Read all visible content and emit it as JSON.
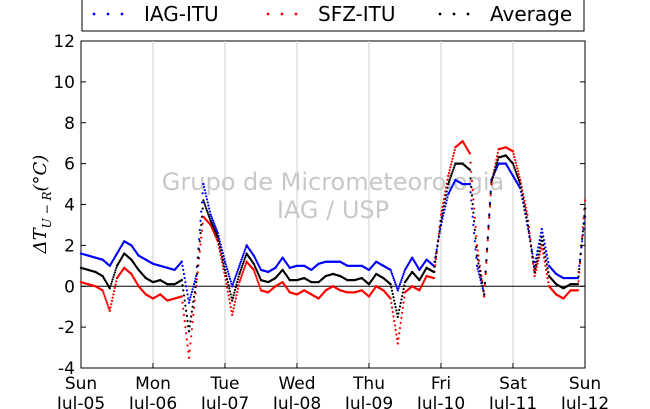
{
  "chart_data": {
    "type": "scatter",
    "title": "",
    "ylabel": "ΔT_{U-R}(°C)",
    "ylabel_parts": {
      "main": "ΔT",
      "sub": "U − R",
      "unit": "(°C)"
    },
    "xlabel": "",
    "ylim": [
      -4,
      12
    ],
    "yticks": [
      -4,
      -2,
      0,
      2,
      4,
      6,
      8,
      10,
      12
    ],
    "x_range_days": [
      0,
      7
    ],
    "xticks": [
      {
        "day": "Sun",
        "date": "Jul-05"
      },
      {
        "day": "Mon",
        "date": "Jul-06"
      },
      {
        "day": "Tue",
        "date": "Jul-07"
      },
      {
        "day": "Wed",
        "date": "Jul-08"
      },
      {
        "day": "Thu",
        "date": "Jul-09"
      },
      {
        "day": "Fri",
        "date": "Jul-10"
      },
      {
        "day": "Sat",
        "date": "Jul-11"
      },
      {
        "day": "Sun",
        "date": "Jul-12"
      }
    ],
    "grid": "vertical",
    "zero_line": true,
    "legend_position": "top",
    "watermark": [
      "Grupo de Micrometeorologia",
      "IAG / USP"
    ],
    "series": [
      {
        "name": "IAG-ITU",
        "color": "#0000ff",
        "x": [
          0,
          0.1,
          0.2,
          0.3,
          0.4,
          0.5,
          0.6,
          0.7,
          0.8,
          0.9,
          1.0,
          1.1,
          1.2,
          1.3,
          1.4,
          1.5,
          1.6,
          1.7,
          1.8,
          1.9,
          2.0,
          2.1,
          2.2,
          2.3,
          2.4,
          2.5,
          2.6,
          2.7,
          2.8,
          2.9,
          3.0,
          3.1,
          3.2,
          3.3,
          3.4,
          3.5,
          3.6,
          3.7,
          3.8,
          3.9,
          4.0,
          4.1,
          4.2,
          4.3,
          4.4,
          4.5,
          4.6,
          4.7,
          4.8,
          4.9,
          5.0,
          5.1,
          5.2,
          5.3,
          5.4,
          5.5,
          5.6,
          5.7,
          5.8,
          5.9,
          6.0,
          6.1,
          6.2,
          6.3,
          6.4,
          6.5,
          6.6,
          6.7,
          6.8,
          6.9,
          7.0
        ],
        "y": [
          1.6,
          1.5,
          1.4,
          1.3,
          1.0,
          1.6,
          2.2,
          2.0,
          1.5,
          1.3,
          1.1,
          1.0,
          0.9,
          0.8,
          1.2,
          -0.8,
          0.5,
          5.0,
          3.5,
          2.6,
          1.2,
          0.0,
          1.0,
          2.0,
          1.5,
          0.8,
          0.7,
          0.9,
          1.4,
          0.9,
          1.0,
          1.0,
          0.8,
          1.1,
          1.2,
          1.2,
          1.2,
          1.0,
          1.0,
          1.0,
          0.8,
          1.2,
          1.0,
          0.8,
          -0.2,
          0.8,
          1.4,
          0.8,
          1.3,
          1.0,
          3.0,
          4.5,
          5.2,
          5.0,
          5.0,
          1.0,
          -0.4,
          5.2,
          6.0,
          6.0,
          5.4,
          4.8,
          3.0,
          1.0,
          2.8,
          1.0,
          0.6,
          0.4,
          0.4,
          0.4,
          3.4
        ]
      },
      {
        "name": "SFZ-ITU",
        "color": "#ff0000",
        "x": [
          0,
          0.1,
          0.2,
          0.3,
          0.4,
          0.5,
          0.6,
          0.7,
          0.8,
          0.9,
          1.0,
          1.1,
          1.2,
          1.3,
          1.4,
          1.5,
          1.6,
          1.7,
          1.8,
          1.9,
          2.0,
          2.1,
          2.2,
          2.3,
          2.4,
          2.5,
          2.6,
          2.7,
          2.8,
          2.9,
          3.0,
          3.1,
          3.2,
          3.3,
          3.4,
          3.5,
          3.6,
          3.7,
          3.8,
          3.9,
          4.0,
          4.1,
          4.2,
          4.3,
          4.4,
          4.5,
          4.6,
          4.7,
          4.8,
          4.9,
          5.0,
          5.1,
          5.2,
          5.3,
          5.4,
          5.5,
          5.6,
          5.7,
          5.8,
          5.9,
          6.0,
          6.1,
          6.2,
          6.3,
          6.4,
          6.5,
          6.6,
          6.7,
          6.8,
          6.9,
          7.0
        ],
        "y": [
          0.2,
          0.1,
          0.0,
          -0.2,
          -1.2,
          0.4,
          0.9,
          0.6,
          0.0,
          -0.4,
          -0.6,
          -0.4,
          -0.7,
          -0.6,
          -0.5,
          -3.5,
          0.0,
          3.4,
          3.0,
          2.2,
          0.5,
          -1.4,
          0.2,
          1.2,
          0.8,
          -0.2,
          -0.3,
          0.0,
          0.2,
          -0.3,
          -0.4,
          -0.2,
          -0.4,
          -0.6,
          -0.2,
          0.0,
          -0.2,
          -0.3,
          -0.3,
          -0.2,
          -0.5,
          0.0,
          -0.2,
          -0.6,
          -2.8,
          -0.3,
          0.0,
          -0.2,
          0.5,
          0.4,
          3.5,
          5.4,
          6.8,
          7.1,
          6.5,
          2.0,
          -0.5,
          5.0,
          6.7,
          6.8,
          6.6,
          5.2,
          3.5,
          0.5,
          2.0,
          0.0,
          -0.4,
          -0.6,
          -0.2,
          -0.2,
          4.2
        ]
      },
      {
        "name": "Average",
        "color": "#000000",
        "x": [
          0,
          0.1,
          0.2,
          0.3,
          0.4,
          0.5,
          0.6,
          0.7,
          0.8,
          0.9,
          1.0,
          1.1,
          1.2,
          1.3,
          1.4,
          1.5,
          1.6,
          1.7,
          1.8,
          1.9,
          2.0,
          2.1,
          2.2,
          2.3,
          2.4,
          2.5,
          2.6,
          2.7,
          2.8,
          2.9,
          3.0,
          3.1,
          3.2,
          3.3,
          3.4,
          3.5,
          3.6,
          3.7,
          3.8,
          3.9,
          4.0,
          4.1,
          4.2,
          4.3,
          4.4,
          4.5,
          4.6,
          4.7,
          4.8,
          4.9,
          5.0,
          5.1,
          5.2,
          5.3,
          5.4,
          5.5,
          5.6,
          5.7,
          5.8,
          5.9,
          6.0,
          6.1,
          6.2,
          6.3,
          6.4,
          6.5,
          6.6,
          6.7,
          6.8,
          6.9,
          7.0
        ],
        "y": [
          0.9,
          0.8,
          0.7,
          0.5,
          -0.1,
          1.0,
          1.6,
          1.3,
          0.8,
          0.4,
          0.2,
          0.3,
          0.1,
          0.1,
          0.3,
          -2.2,
          0.2,
          4.2,
          3.2,
          2.4,
          0.8,
          -0.7,
          0.6,
          1.6,
          1.1,
          0.3,
          0.2,
          0.4,
          0.8,
          0.3,
          0.3,
          0.4,
          0.2,
          0.2,
          0.5,
          0.6,
          0.5,
          0.3,
          0.3,
          0.4,
          0.1,
          0.6,
          0.4,
          0.1,
          -1.5,
          0.2,
          0.7,
          0.3,
          0.9,
          0.7,
          3.2,
          5.0,
          6.0,
          6.0,
          5.7,
          1.5,
          -0.4,
          5.1,
          6.3,
          6.4,
          6.0,
          5.0,
          3.2,
          0.7,
          2.4,
          0.5,
          0.1,
          -0.1,
          0.1,
          0.1,
          3.8
        ]
      }
    ]
  }
}
